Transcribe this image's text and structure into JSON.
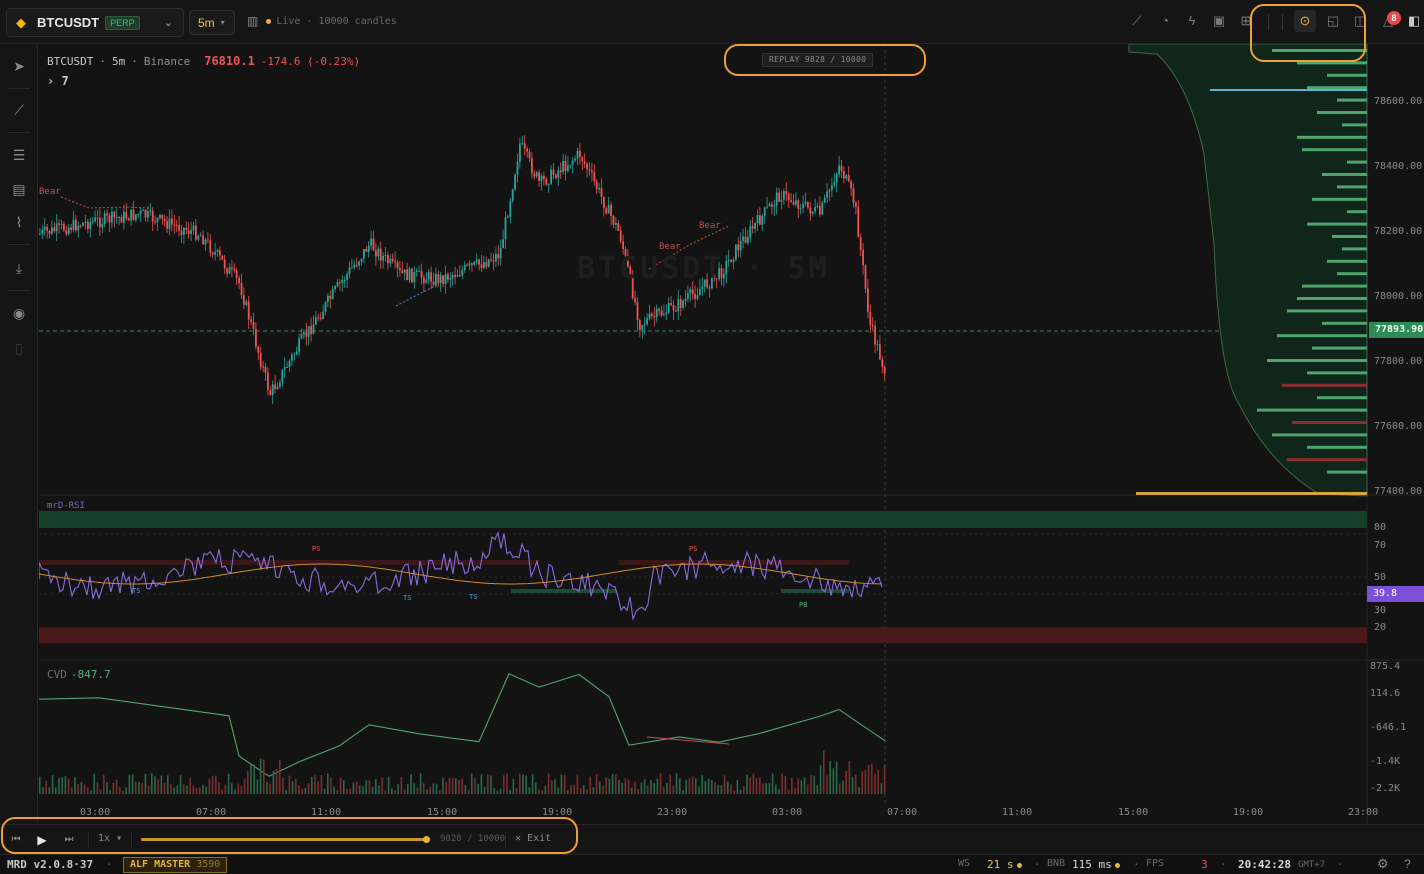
{
  "topbar": {
    "symbol": "BTCUSDT",
    "symbol_badge": "PERP",
    "timeframe": "5m",
    "live_text": "Live · 10000 candles",
    "notification_count": "8"
  },
  "legend": {
    "pair": "BTCUSDT",
    "timeframe": "5m",
    "exchange": "Binance",
    "price": "76810.1",
    "change": "-174.6 (-0.23%)",
    "collapsed_count": "7"
  },
  "replay_badge": "REPLAY  9828 / 10000",
  "watermark": "BTCUSDT · 5M",
  "price_axis": [
    "78600.00",
    "78400.00",
    "78200.00",
    "78000.00",
    "77800.00",
    "77600.00",
    "77400.00"
  ],
  "current_price_tag": "77893.90",
  "rsi": {
    "label": "mrD-RSI",
    "levels": [
      "80",
      "70",
      "50",
      "30",
      "20"
    ],
    "value_tag": "39.8",
    "signals": [
      "PS",
      "PS",
      "TS",
      "TS",
      "TS",
      "PB"
    ]
  },
  "cvd": {
    "label": "CVD",
    "value": "-847.7",
    "axis": [
      "875.4",
      "114.6",
      "-646.1",
      "-1.4K",
      "-2.2K"
    ]
  },
  "pattern_labels": [
    "Bear",
    "Bear",
    "Bear"
  ],
  "time_axis": [
    "03:00",
    "07:00",
    "11:00",
    "15:00",
    "19:00",
    "23:00",
    "03:00",
    "07:00",
    "11:00",
    "15:00",
    "19:00",
    "23:00"
  ],
  "replay_bar": {
    "speed": "1x",
    "count": "9828 / 10000",
    "exit_label": "Exit",
    "progress": 0.9828
  },
  "status": {
    "version": "MRD v2.0.8·37",
    "master_label": "ALF MASTER",
    "master_value": "3590",
    "ws_label": "WS",
    "ws_value": "21 s",
    "bnb_label": "BNB",
    "bnb_value": "115 ms",
    "fps_label": "FPS",
    "fps_value": "3",
    "clock": "20:42:28",
    "tz": "GMT+7"
  },
  "colors": {
    "bull": "#26a69a",
    "bear": "#ef5350",
    "accent": "#e8b23a",
    "rsi": "#7b4fd6"
  }
}
